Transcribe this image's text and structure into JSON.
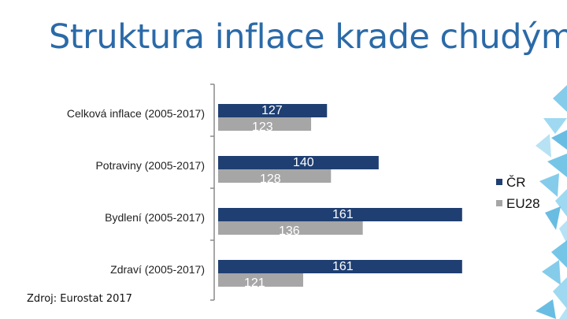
{
  "title": "Struktura inflace krade chudým",
  "source": "Zdroj: Eurostat 2017",
  "colors": {
    "title": "#2b6aa8",
    "cr": "#1f3f72",
    "eu": "#a6a6a6",
    "axis": "#8a8a8a",
    "deco": "#6ec3e6"
  },
  "chart_data": {
    "type": "bar",
    "orientation": "horizontal",
    "categories": [
      "Celková inflace (2005-2017)",
      "Potraviny (2005-2017)",
      "Bydlení (2005-2017)",
      "Zdraví (2005-2017)"
    ],
    "series": [
      {
        "name": "ČR",
        "values": [
          127,
          140,
          161,
          161
        ],
        "labels": [
          "127",
          "140",
          "161",
          "161"
        ]
      },
      {
        "name": "EU28",
        "values": [
          123,
          128,
          136,
          121
        ],
        "labels": [
          "123",
          "128",
          "136",
          "121"
        ]
      }
    ],
    "xlim": [
      100,
      165
    ],
    "legend_position": "right",
    "grid": false
  }
}
